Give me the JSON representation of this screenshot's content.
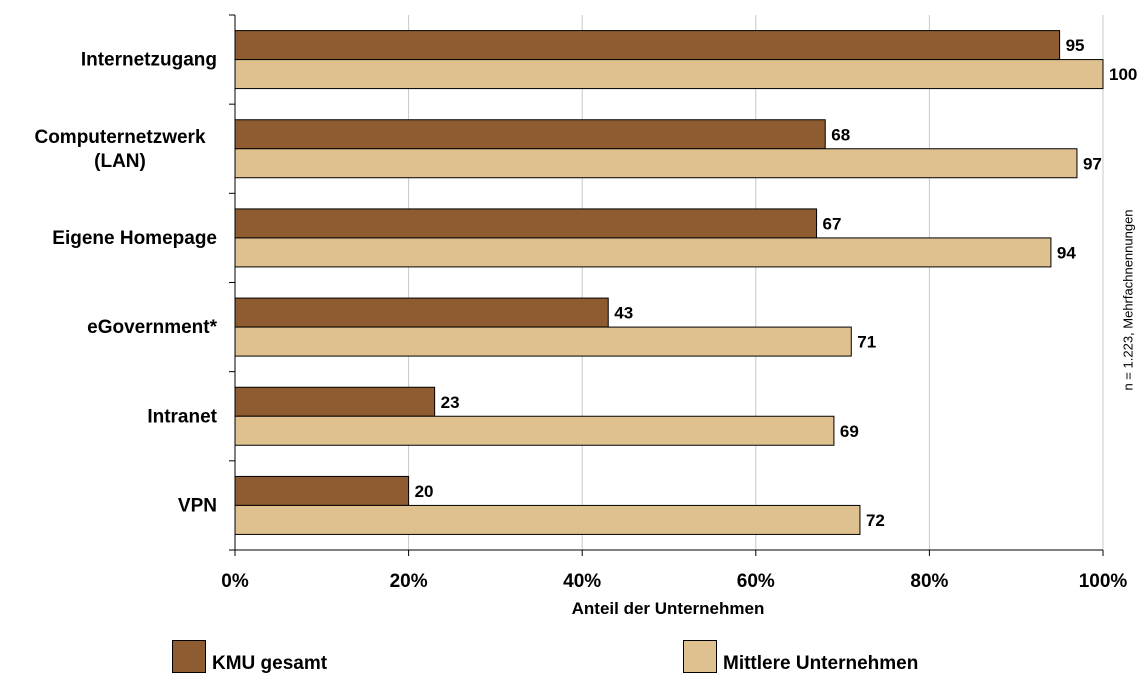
{
  "chart_data": {
    "type": "bar",
    "orientation": "horizontal",
    "categories": [
      "Internetzugang",
      "Computernetzwerk\n(LAN)",
      "Eigene Homepage",
      "eGovernment*",
      "Intranet",
      "VPN"
    ],
    "series": [
      {
        "name": "KMU gesamt",
        "values": [
          95,
          68,
          67,
          43,
          23,
          20
        ],
        "color": "#8E5C30"
      },
      {
        "name": "Mittlere Unternehmen",
        "values": [
          100,
          97,
          94,
          71,
          69,
          72
        ],
        "color": "#DFC08F"
      }
    ],
    "xlabel": "Anteil der Unternehmen",
    "xlim": [
      0,
      100
    ],
    "xticks": [
      "0%",
      "20%",
      "40%",
      "60%",
      "80%",
      "100%"
    ],
    "grid": true,
    "legend_position": "bottom",
    "note": "n = 1.223, Mehrfachnennungen"
  }
}
